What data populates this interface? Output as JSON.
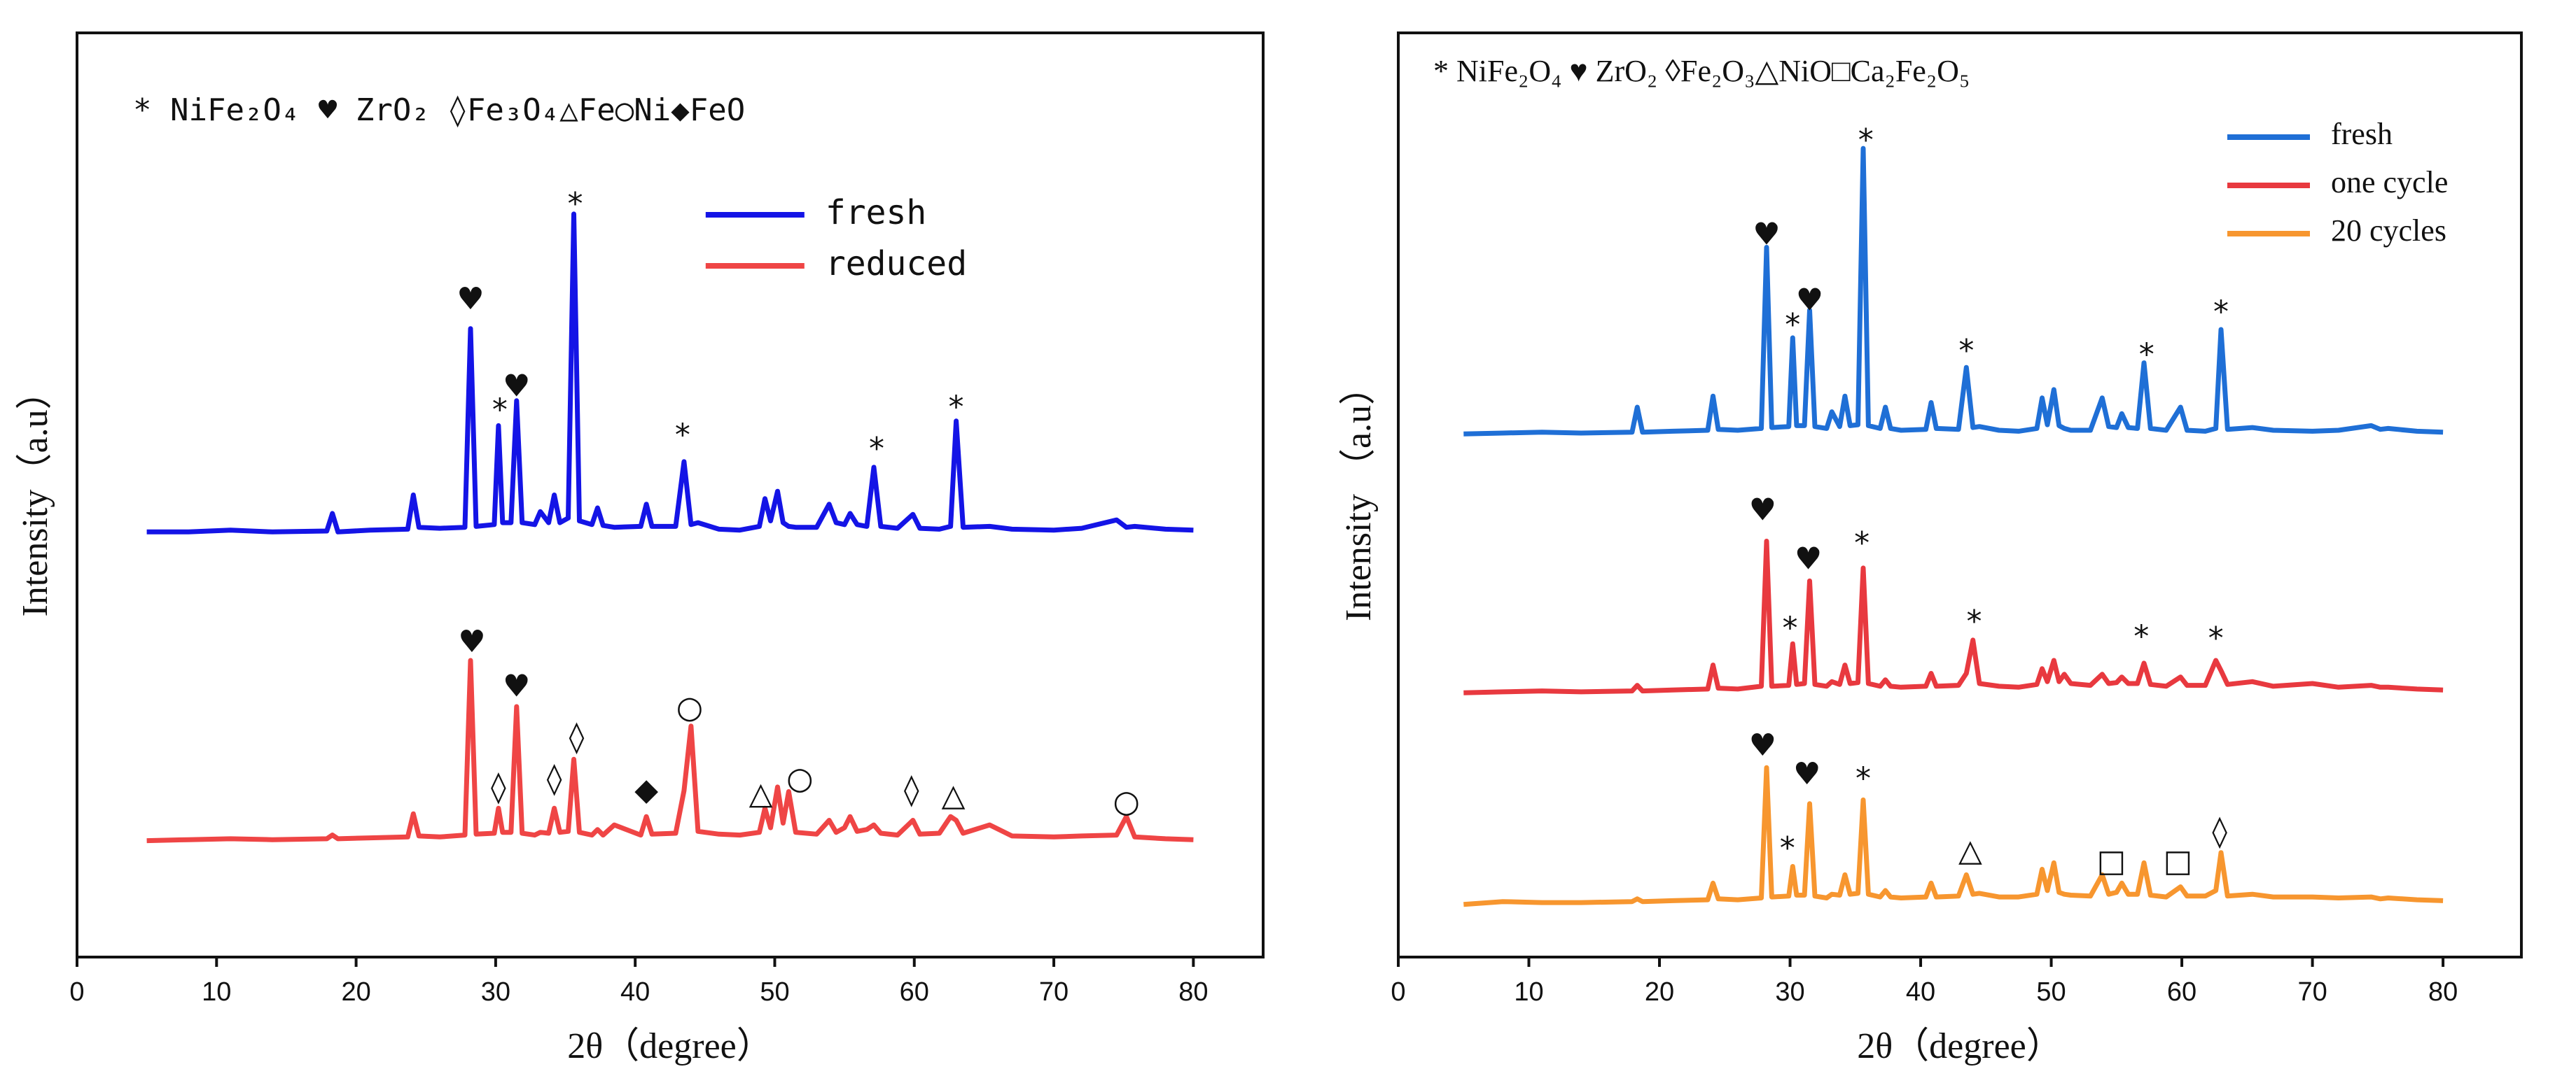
{
  "chart_data": [
    {
      "type": "line",
      "legend_note": "* NiFe₂O₄ ♥ ZrO₂ ◊Fe₃O₄△Fe○Ni◆FeO",
      "xlabel": "2θ（degree）",
      "ylabel": "Intensity（a.u）",
      "legend": "upper center",
      "xlim": [
        0,
        85
      ],
      "xticks": [
        0,
        10,
        20,
        30,
        40,
        50,
        60,
        70,
        80
      ],
      "ylim": [
        0,
        100
      ],
      "x": [
        5,
        8,
        11,
        14,
        17.9,
        18.3,
        18.7,
        21,
        23.7,
        24.1,
        24.5,
        26,
        27.8,
        28.2,
        28.6,
        29.9,
        30.2,
        30.5,
        31.1,
        31.5,
        31.9,
        32.8,
        33.2,
        33.8,
        34.2,
        34.6,
        35.2,
        35.6,
        36.0,
        36.9,
        37.3,
        37.7,
        38.5,
        40.4,
        40.8,
        41.2,
        42.9,
        43.5,
        44.0,
        44.5,
        46,
        47.5,
        48.9,
        49.3,
        49.7,
        50.2,
        50.6,
        51.0,
        51.5,
        53.0,
        53.9,
        54.4,
        55.0,
        55.4,
        55.9,
        56.6,
        57.1,
        57.6,
        58.8,
        59.9,
        60.4,
        61.8,
        62.6,
        63.0,
        63.5,
        65.4,
        67,
        70,
        72,
        74.5,
        75.2,
        75.8,
        78,
        80
      ],
      "series": [
        {
          "name": "fresh",
          "color": "#1414e6",
          "values": [
            46,
            46,
            46.2,
            46,
            46.1,
            48,
            46,
            46.2,
            46.3,
            50,
            46.5,
            46.4,
            46.5,
            68,
            46.6,
            46.8,
            57.5,
            47,
            47,
            60.2,
            47,
            46.8,
            48.2,
            47,
            50,
            47,
            47.5,
            80.4,
            47.2,
            46.8,
            48.6,
            46.7,
            46.5,
            46.6,
            49,
            46.6,
            46.6,
            53.6,
            46.8,
            47,
            46.3,
            46.2,
            46.6,
            49.6,
            47.2,
            50.4,
            47,
            46.6,
            46.5,
            46.5,
            49,
            47,
            46.8,
            48,
            46.8,
            46.6,
            53,
            46.6,
            46.4,
            47.9,
            46.4,
            46.3,
            46.6,
            58,
            46.5,
            46.6,
            46.3,
            46.2,
            46.4,
            47.3,
            46.5,
            46.6,
            46.3,
            46.2
          ]
        },
        {
          "name": "reduced",
          "color": "#ef4545",
          "values": [
            12.6,
            12.7,
            12.8,
            12.7,
            12.8,
            13.2,
            12.8,
            12.9,
            13,
            15.5,
            13.1,
            13,
            13.2,
            32.1,
            13.3,
            13.4,
            16.1,
            13.5,
            13.5,
            27.1,
            13.4,
            13.2,
            13.5,
            13.4,
            16.1,
            13.5,
            13.6,
            21.4,
            13.5,
            13.2,
            13.8,
            13.2,
            14.3,
            13.2,
            15.2,
            13.3,
            13.4,
            18,
            25,
            13.6,
            13.3,
            13.2,
            13.5,
            16.1,
            14,
            18.4,
            14.5,
            17.9,
            13.5,
            13.3,
            14.8,
            13.5,
            14,
            15.2,
            13.6,
            13.8,
            14.3,
            13.4,
            13.2,
            14.8,
            13.3,
            13.4,
            15.2,
            14.8,
            13.4,
            14.3,
            13.1,
            13,
            13.1,
            13.2,
            15.2,
            13,
            12.8,
            12.7
          ]
        }
      ],
      "annotations": [
        {
          "text": "♥",
          "x": 28.2,
          "y": 71
        },
        {
          "text": "*",
          "x": 30.3,
          "y": 59
        },
        {
          "text": "♥",
          "x": 31.5,
          "y": 61.6
        },
        {
          "text": "*",
          "x": 35.7,
          "y": 81.3
        },
        {
          "text": "*",
          "x": 43.4,
          "y": 56.3
        },
        {
          "text": "*",
          "x": 57.3,
          "y": 54.8
        },
        {
          "text": "*",
          "x": 63,
          "y": 59.3
        },
        {
          "text": "♥",
          "x": 28.3,
          "y": 33.9
        },
        {
          "text": "♥",
          "x": 31.5,
          "y": 29.1
        },
        {
          "text": "◊",
          "x": 30.2,
          "y": 18.2
        },
        {
          "text": "◊",
          "x": 34.2,
          "y": 19.1
        },
        {
          "text": "◊",
          "x": 35.8,
          "y": 23.6
        },
        {
          "text": "◆",
          "x": 40.8,
          "y": 17.9
        },
        {
          "text": "○",
          "x": 43.9,
          "y": 26.8
        },
        {
          "text": "△",
          "x": 49,
          "y": 17.5
        },
        {
          "text": "○",
          "x": 51.8,
          "y": 19.1
        },
        {
          "text": "◊",
          "x": 59.8,
          "y": 17.9
        },
        {
          "text": "△",
          "x": 62.8,
          "y": 17.3
        },
        {
          "text": "○",
          "x": 75.2,
          "y": 16.6
        }
      ]
    },
    {
      "type": "line",
      "legend_note": "* NiFe₂O₄ ♥ ZrO₂ ◊Fe₂O₃△NiO□Ca₂Fe₂O₅",
      "xlabel": "2θ（degree）",
      "ylabel": "Intensity （a.u）",
      "legend": "upper right",
      "xlim": [
        0,
        86
      ],
      "xticks": [
        0,
        10,
        20,
        30,
        40,
        50,
        60,
        70,
        80
      ],
      "ylim": [
        0,
        100
      ],
      "x": [
        5,
        8,
        11,
        14,
        17.9,
        18.3,
        18.7,
        21,
        23.7,
        24.1,
        24.5,
        26,
        27.8,
        28.2,
        28.6,
        29.9,
        30.2,
        30.5,
        31.1,
        31.5,
        31.9,
        32.8,
        33.2,
        33.8,
        34.2,
        34.6,
        35.2,
        35.6,
        36.0,
        36.9,
        37.3,
        37.7,
        38.5,
        40.4,
        40.8,
        41.2,
        42.9,
        43.5,
        44.0,
        44.5,
        46,
        47.5,
        48.9,
        49.3,
        49.7,
        50.2,
        50.6,
        51.0,
        51.5,
        53.0,
        53.9,
        54.4,
        55.0,
        55.4,
        55.9,
        56.6,
        57.1,
        57.6,
        58.8,
        59.9,
        60.4,
        61.8,
        62.6,
        63.0,
        63.5,
        65.4,
        67,
        70,
        72,
        74.5,
        75.2,
        75.8,
        78,
        80
      ],
      "series": [
        {
          "name": "fresh",
          "color": "#1f6fd6",
          "values": [
            56.6,
            56.7,
            56.8,
            56.7,
            56.8,
            59.5,
            56.8,
            56.9,
            57,
            60.7,
            57.1,
            57,
            57.2,
            76.8,
            57.3,
            57.4,
            67,
            57.5,
            57.5,
            70,
            57.4,
            57.2,
            59,
            57.4,
            60.7,
            57.5,
            57.6,
            87.5,
            57.5,
            57.2,
            59.5,
            57.2,
            57,
            57.1,
            60,
            57.2,
            57.1,
            63.8,
            57.3,
            57.4,
            57,
            56.9,
            57.2,
            60.5,
            57.6,
            61.4,
            57.5,
            57.2,
            57,
            57,
            60.5,
            57.4,
            57.3,
            58.8,
            57.3,
            57.2,
            64.3,
            57.2,
            57,
            59.5,
            57,
            56.9,
            57.2,
            67.9,
            57.1,
            57.3,
            57,
            56.9,
            57,
            57.5,
            57.1,
            57.2,
            56.9,
            56.8
          ]
        },
        {
          "name": "one cycle",
          "color": "#e8393f",
          "values": [
            28.6,
            28.7,
            28.8,
            28.7,
            28.8,
            29.4,
            28.8,
            28.9,
            29,
            31.6,
            29.1,
            29,
            29.3,
            45,
            29.3,
            29.4,
            33.9,
            29.5,
            29.6,
            40.7,
            29.5,
            29.3,
            29.8,
            29.5,
            31.6,
            29.6,
            29.7,
            42.1,
            29.6,
            29.3,
            30,
            29.3,
            29.2,
            29.3,
            30.7,
            29.3,
            29.4,
            30.7,
            34.3,
            29.6,
            29.3,
            29.2,
            29.5,
            31.2,
            29.8,
            32.1,
            29.8,
            30.6,
            29.6,
            29.4,
            30.6,
            29.6,
            29.7,
            30.3,
            29.6,
            29.6,
            31.8,
            29.5,
            29.3,
            30.3,
            29.4,
            29.4,
            32.1,
            31,
            29.5,
            29.8,
            29.3,
            29.6,
            29.2,
            29.4,
            29.2,
            29.2,
            29,
            28.9
          ]
        },
        {
          "name": "20 cycles",
          "color": "#f7962f",
          "values": [
            5.7,
            6,
            5.9,
            5.9,
            6,
            6.3,
            6,
            6.1,
            6.2,
            8,
            6.3,
            6.2,
            6.4,
            20.5,
            6.5,
            6.6,
            9.8,
            6.7,
            6.7,
            16.6,
            6.6,
            6.4,
            6.8,
            6.7,
            8.9,
            6.8,
            6.9,
            17,
            6.8,
            6.5,
            7.2,
            6.5,
            6.4,
            6.5,
            8,
            6.5,
            6.6,
            8.9,
            6.8,
            6.9,
            6.5,
            6.5,
            6.8,
            9.5,
            7.2,
            10.2,
            7,
            6.8,
            6.7,
            6.6,
            8.9,
            6.8,
            7,
            8,
            6.8,
            6.8,
            10.2,
            6.7,
            6.5,
            7.6,
            6.6,
            6.6,
            7.2,
            11.3,
            6.6,
            6.8,
            6.5,
            6.5,
            6.4,
            6.5,
            6.3,
            6.4,
            6.2,
            6.1
          ]
        }
      ],
      "annotations": [
        {
          "text": "♥",
          "x": 28.2,
          "y": 78
        },
        {
          "text": "*",
          "x": 30.2,
          "y": 68.2
        },
        {
          "text": "♥",
          "x": 31.5,
          "y": 70.9
        },
        {
          "text": "*",
          "x": 35.8,
          "y": 88.2
        },
        {
          "text": "*",
          "x": 43.5,
          "y": 65.4
        },
        {
          "text": "*",
          "x": 57.3,
          "y": 65
        },
        {
          "text": "*",
          "x": 63,
          "y": 69.6
        },
        {
          "text": "♥",
          "x": 27.9,
          "y": 48.2
        },
        {
          "text": "*",
          "x": 30,
          "y": 35.4
        },
        {
          "text": "♥",
          "x": 31.4,
          "y": 42.9
        },
        {
          "text": "*",
          "x": 35.5,
          "y": 44.6
        },
        {
          "text": "*",
          "x": 44.1,
          "y": 36.1
        },
        {
          "text": "*",
          "x": 56.9,
          "y": 34.5
        },
        {
          "text": "*",
          "x": 62.6,
          "y": 34.3
        },
        {
          "text": "♥",
          "x": 27.9,
          "y": 22.7
        },
        {
          "text": "*",
          "x": 29.8,
          "y": 11.6
        },
        {
          "text": "♥",
          "x": 31.3,
          "y": 19.6
        },
        {
          "text": "*",
          "x": 35.6,
          "y": 19.1
        },
        {
          "text": "△",
          "x": 43.8,
          "y": 11.3
        },
        {
          "text": "□",
          "x": 54.6,
          "y": 10.2
        },
        {
          "text": "□",
          "x": 59.7,
          "y": 10.2
        },
        {
          "text": "◊",
          "x": 62.9,
          "y": 13.4
        }
      ]
    }
  ]
}
